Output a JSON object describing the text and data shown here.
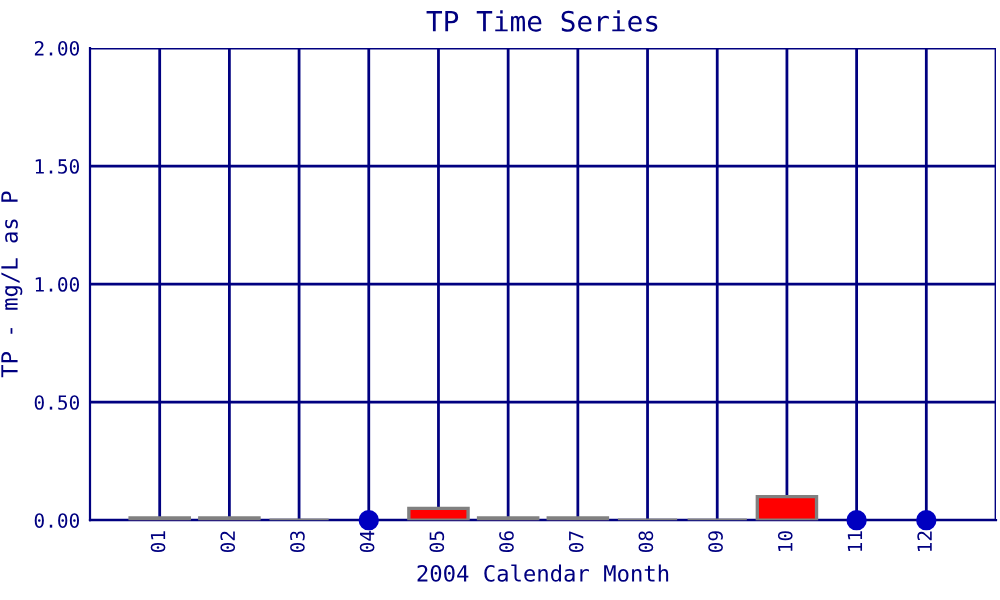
{
  "chart_data": {
    "type": "bar",
    "title": "TP Time Series",
    "xlabel": "2004 Calendar Month",
    "ylabel": "TP - mg/L as P",
    "categories": [
      "01",
      "02",
      "03",
      "04",
      "05",
      "06",
      "07",
      "08",
      "09",
      "10",
      "11",
      "12"
    ],
    "series": [
      {
        "colors": [
          "#ff0000",
          "#ff0000",
          "#808080",
          null,
          "#ff0000",
          "#ff0000",
          "#ff0000",
          "#808080",
          "#808080",
          "#ff0000",
          null,
          null
        ],
        "values": [
          0.01,
          0.01,
          0,
          null,
          0.05,
          0.01,
          0.01,
          0,
          0,
          0.1,
          null,
          null
        ]
      },
      {
        "type": "scatter",
        "color": "#0000c0",
        "x": [
          "04",
          "11",
          "12"
        ],
        "values": [
          0,
          0,
          0
        ]
      }
    ],
    "ylim": [
      0,
      2
    ],
    "yticks": [
      {
        "value": 0,
        "label": "0.00"
      },
      {
        "value": 0.5,
        "label": "0.50"
      },
      {
        "value": 1,
        "label": "1.00"
      },
      {
        "value": 1.5,
        "label": "1.50"
      },
      {
        "value": 2,
        "label": "2.00"
      }
    ],
    "grid": true,
    "marker": "circle"
  }
}
